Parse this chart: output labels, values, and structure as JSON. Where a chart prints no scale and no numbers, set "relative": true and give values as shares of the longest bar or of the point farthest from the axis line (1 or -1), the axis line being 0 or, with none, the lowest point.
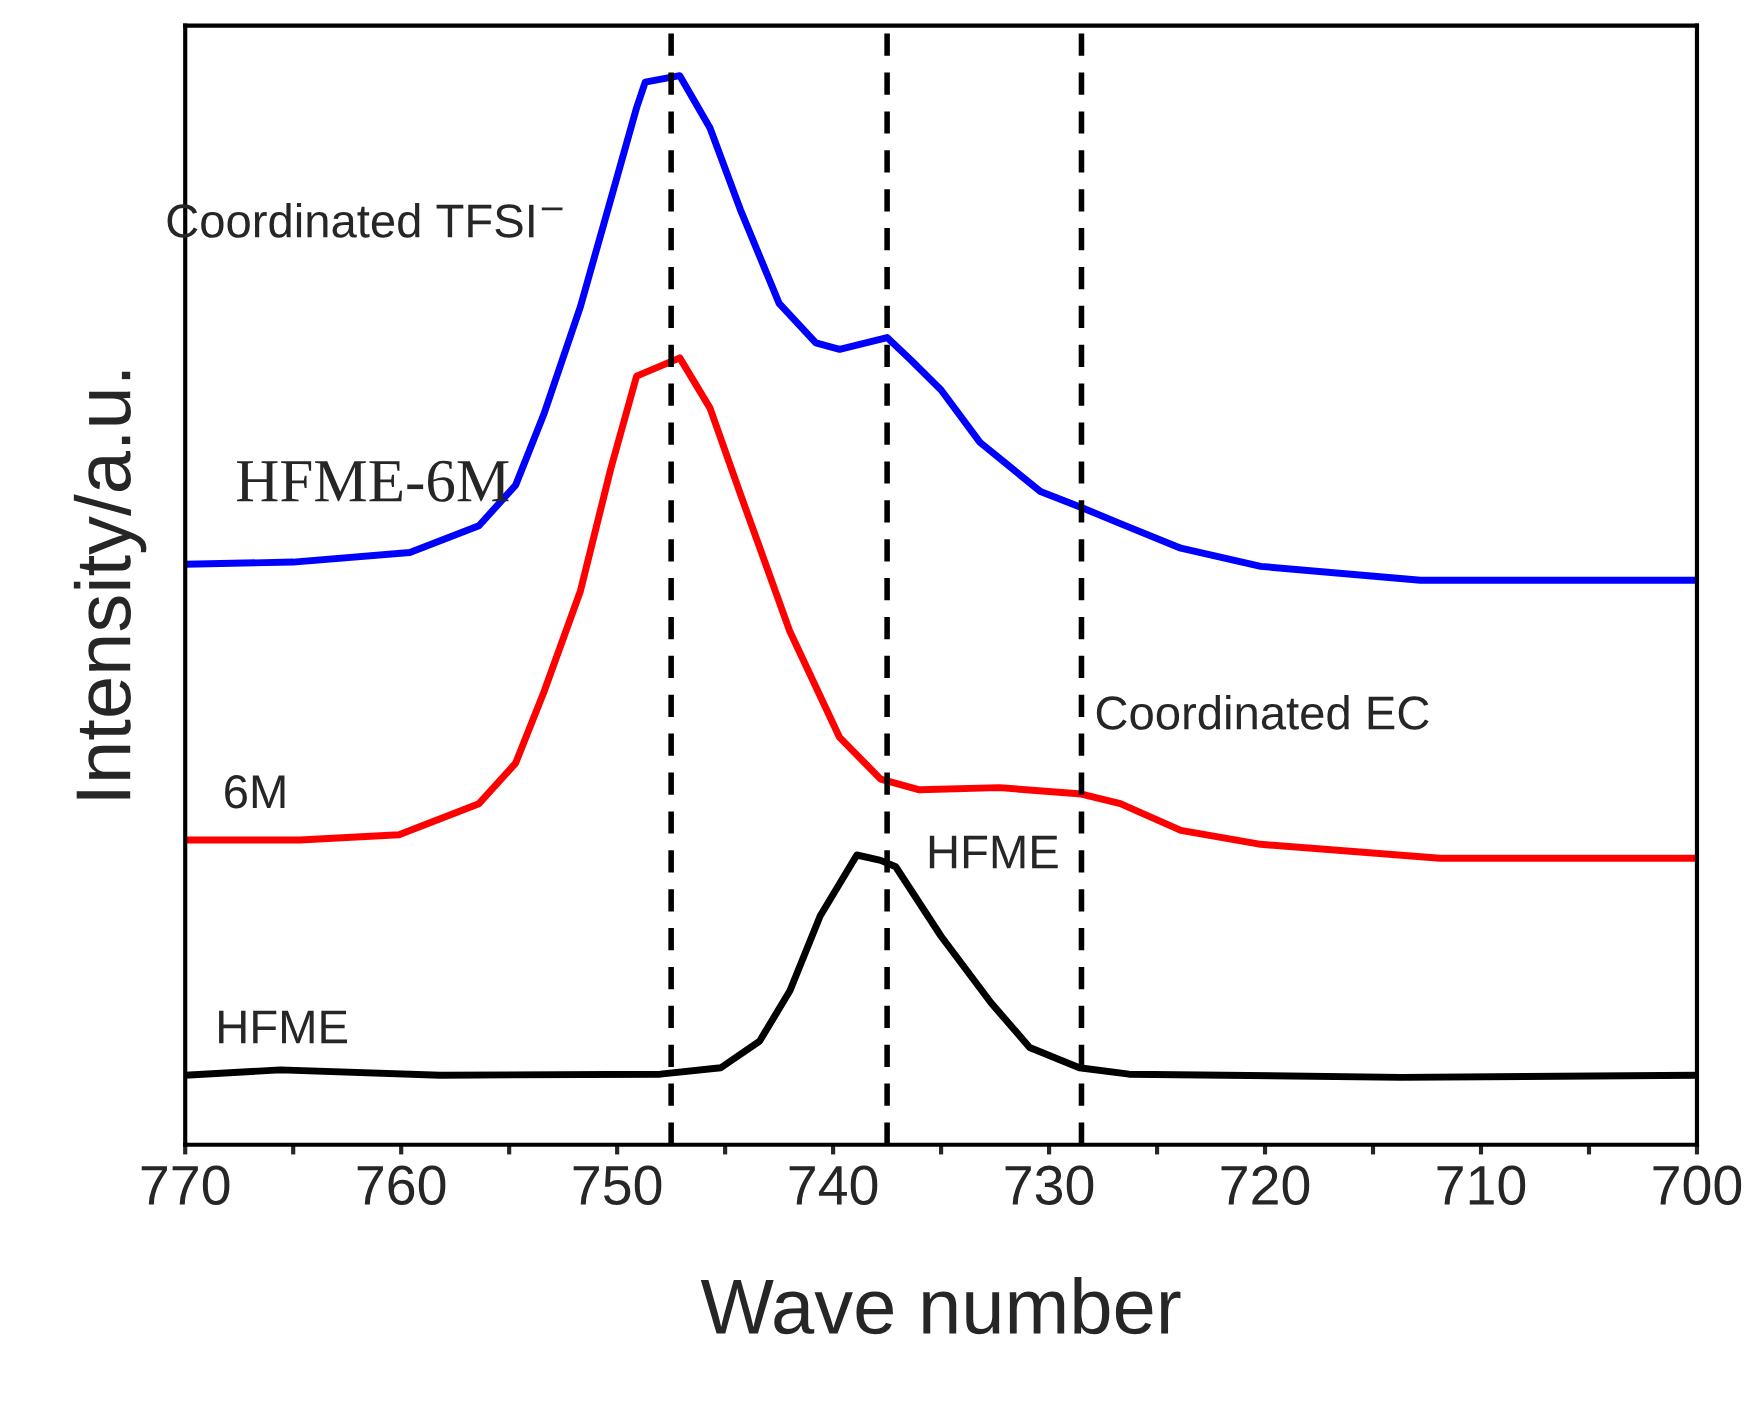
{
  "chart_data": {
    "type": "line",
    "relative": true,
    "xlabel": "Wave number",
    "ylabel": "Intensity/a.u.",
    "xlim": [
      770,
      700
    ],
    "xticks": [
      770,
      {
        "value": 765,
        "label": null
      },
      760,
      {
        "value": 755,
        "label": null
      },
      750,
      {
        "value": 745,
        "label": null
      },
      740,
      {
        "value": 735,
        "label": null
      },
      730,
      {
        "value": 725,
        "label": null
      },
      720,
      {
        "value": 715,
        "label": null
      },
      710,
      {
        "value": 705,
        "label": null
      },
      700
    ],
    "grid": false,
    "line_style": "solid",
    "marker": "none",
    "tick_labels": "x",
    "series": [
      {
        "name": "HFME-6M",
        "color": "#0000ff",
        "x": [
          770,
          765,
          759.6,
          756.4,
          754.7,
          753.4,
          751.7,
          750.3,
          749.1,
          748.7,
          747.1,
          745.7,
          744.3,
          742.5,
          740.8,
          739.7,
          737.5,
          736.4,
          735.0,
          733.2,
          730.4,
          728.5,
          726.7,
          723.9,
          720.2,
          712.8,
          708.2,
          700
        ],
        "values": [
          0.543,
          0.545,
          0.554,
          0.579,
          0.617,
          0.683,
          0.784,
          0.884,
          0.97,
          0.994,
          1.0,
          0.951,
          0.875,
          0.787,
          0.75,
          0.744,
          0.755,
          0.734,
          0.706,
          0.657,
          0.611,
          0.596,
          0.581,
          0.558,
          0.541,
          0.528,
          0.528,
          0.528
        ]
      },
      {
        "name": "6M",
        "color": "#ff0000",
        "x": [
          770,
          764.7,
          760.1,
          756.4,
          754.7,
          753.4,
          751.7,
          750.3,
          749.1,
          747.1,
          745.7,
          744.3,
          742.0,
          739.7,
          737.8,
          736.0,
          732.3,
          728.5,
          726.7,
          723.9,
          720.2,
          711.9,
          700
        ],
        "values": [
          0.285,
          0.285,
          0.29,
          0.319,
          0.357,
          0.423,
          0.518,
          0.632,
          0.719,
          0.736,
          0.689,
          0.609,
          0.48,
          0.381,
          0.342,
          0.332,
          0.334,
          0.328,
          0.319,
          0.294,
          0.281,
          0.268,
          0.268
        ]
      },
      {
        "name": "HFME",
        "color": "#000000",
        "x": [
          770,
          765.6,
          758.2,
          748.0,
          745.2,
          743.4,
          742.0,
          740.6,
          738.9,
          737.8,
          737.1,
          735.0,
          732.7,
          730.9,
          728.6,
          726.3,
          713.7,
          700
        ],
        "values": [
          0.065,
          0.07,
          0.065,
          0.066,
          0.072,
          0.097,
          0.144,
          0.214,
          0.271,
          0.266,
          0.26,
          0.195,
          0.133,
          0.091,
          0.072,
          0.066,
          0.063,
          0.065
        ]
      }
    ],
    "ref_lines": [
      {
        "axis": "x",
        "value": 747.5,
        "color": "#000000",
        "line_style": "dashed"
      },
      {
        "axis": "x",
        "value": 737.5,
        "color": "#000000",
        "line_style": "dashed"
      },
      {
        "axis": "x",
        "value": 728.5,
        "color": "#000000",
        "line_style": "dashed"
      }
    ],
    "annotations": [
      "Coordinated TFSI$^{−}$",
      "Coordinated EC",
      "HFME"
    ]
  }
}
